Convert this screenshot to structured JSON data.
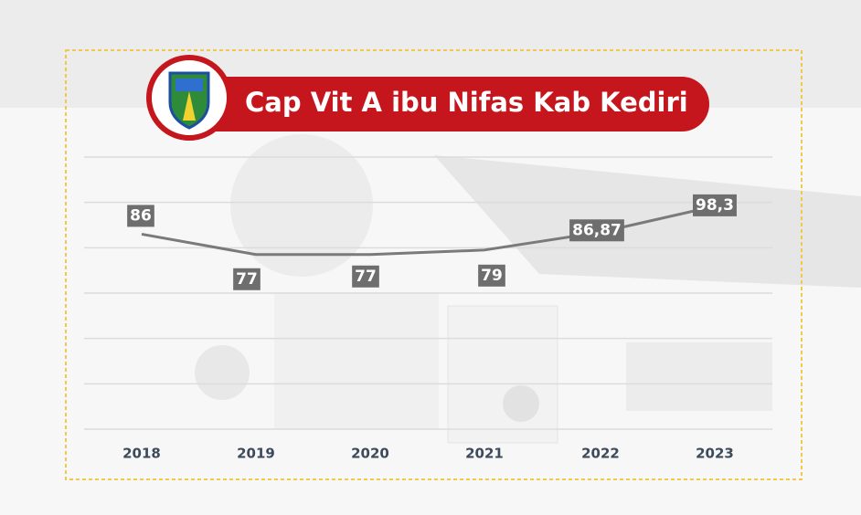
{
  "chart_data": {
    "type": "line",
    "title": "Cap Vit A ibu Nifas Kab Kediri",
    "categories": [
      "2018",
      "2019",
      "2020",
      "2021",
      "2022",
      "2023"
    ],
    "values": [
      86,
      77,
      77,
      79,
      86.87,
      98.3
    ],
    "value_labels": [
      "86",
      "77",
      "77",
      "79",
      "86,87",
      "98,3"
    ],
    "color": "#7a7a7a",
    "ylim": [
      0,
      120
    ],
    "grid": true
  }
}
